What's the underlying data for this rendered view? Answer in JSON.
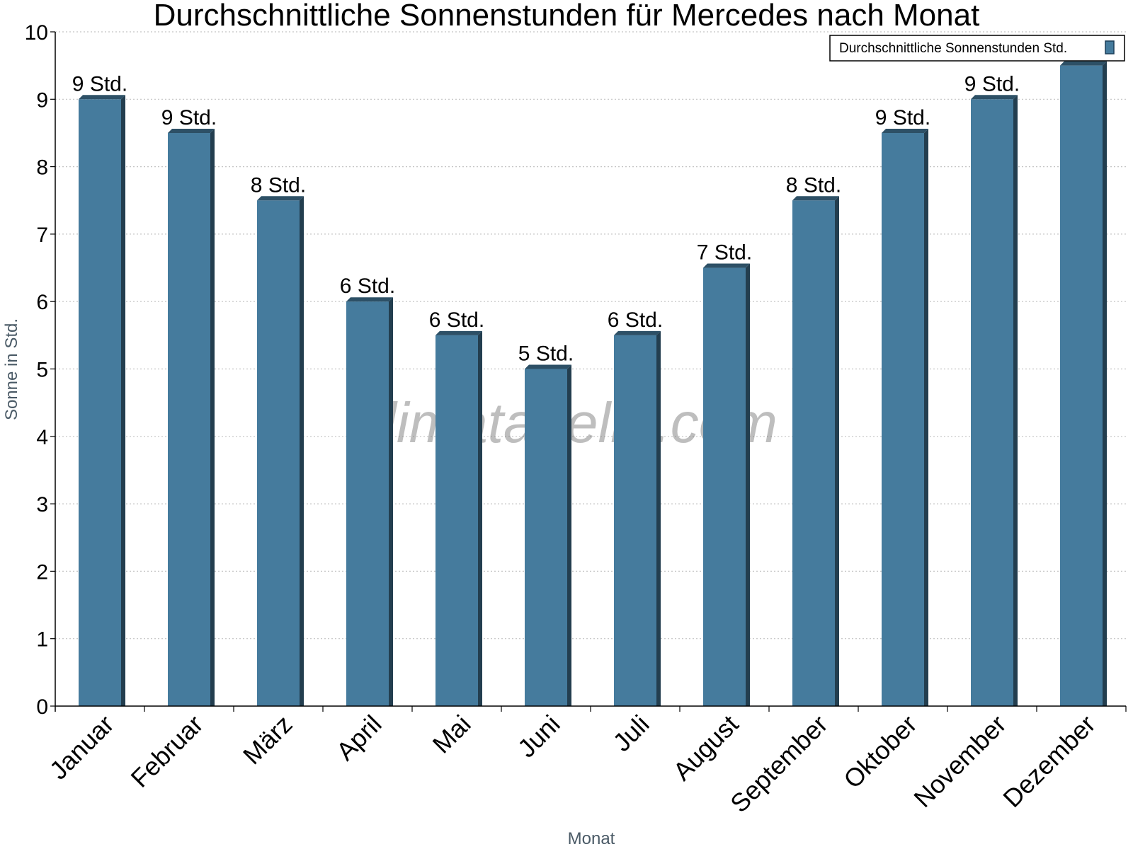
{
  "chart_data": {
    "type": "bar",
    "title": "Durchschnittliche Sonnenstunden für Mercedes nach Monat",
    "xlabel": "Monat",
    "ylabel": "Sonne in Std.",
    "ylim": [
      0,
      10
    ],
    "yticks": [
      0,
      1,
      2,
      3,
      4,
      5,
      6,
      7,
      8,
      9,
      10
    ],
    "grid": true,
    "legend_position": "top-right",
    "categories": [
      "Januar",
      "Februar",
      "März",
      "April",
      "Mai",
      "Juni",
      "Juli",
      "August",
      "September",
      "Oktober",
      "November",
      "Dezember"
    ],
    "series": [
      {
        "name": "Durchschnittliche Sonnenstunden Std.",
        "color": "#457b9d",
        "values": [
          9,
          8.5,
          7.5,
          6,
          5.5,
          5,
          5.5,
          6.5,
          7.5,
          8.5,
          9,
          9.5
        ],
        "data_labels": [
          "9 Std.",
          "9 Std.",
          "8 Std.",
          "6 Std.",
          "6 Std.",
          "5 Std.",
          "6 Std.",
          "7 Std.",
          "8 Std.",
          "9 Std.",
          "9 Std.",
          ""
        ]
      }
    ]
  },
  "watermark": "klimatabelle.com"
}
